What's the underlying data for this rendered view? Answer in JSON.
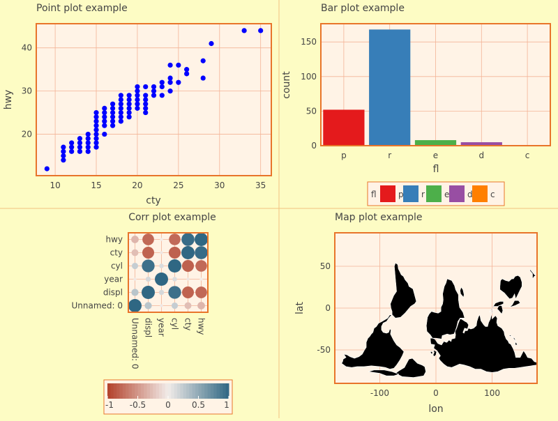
{
  "colors": {
    "background": "#fdfcc4",
    "panel": "#fff3e6",
    "frame": "#e8742a",
    "grid": "#f3b396",
    "divider": "#f1c27f",
    "text": "#444444",
    "point": "#0000ff",
    "map_land": "#000000"
  },
  "chart_data": [
    {
      "id": "point",
      "type": "scatter",
      "title": "Point plot example",
      "xlabel": "cty",
      "ylabel": "hwy",
      "xlim": [
        7.7,
        36.3
      ],
      "ylim": [
        10.4,
        45.6
      ],
      "xticks": [
        10,
        15,
        20,
        25,
        30,
        35
      ],
      "xtick_labels": [
        "10",
        "15",
        "20",
        "25",
        "30",
        "35"
      ],
      "yticks": [
        20,
        30,
        40
      ],
      "ytick_labels": [
        "20",
        "30",
        "40"
      ],
      "grid": true,
      "series": [
        {
          "color": "#0000ff",
          "points": [
            [
              9,
              12
            ],
            [
              11,
              14
            ],
            [
              11,
              15
            ],
            [
              11,
              16
            ],
            [
              11,
              17
            ],
            [
              12,
              16
            ],
            [
              12,
              17
            ],
            [
              12,
              18
            ],
            [
              13,
              16
            ],
            [
              13,
              17
            ],
            [
              13,
              18
            ],
            [
              13,
              19
            ],
            [
              14,
              16
            ],
            [
              14,
              17
            ],
            [
              14,
              18
            ],
            [
              14,
              19
            ],
            [
              14,
              20
            ],
            [
              15,
              17
            ],
            [
              15,
              18
            ],
            [
              15,
              19
            ],
            [
              15,
              20
            ],
            [
              15,
              21
            ],
            [
              15,
              22
            ],
            [
              15,
              23
            ],
            [
              15,
              24
            ],
            [
              15,
              25
            ],
            [
              16,
              20
            ],
            [
              16,
              22
            ],
            [
              16,
              23
            ],
            [
              16,
              24
            ],
            [
              16,
              25
            ],
            [
              16,
              26
            ],
            [
              17,
              22
            ],
            [
              17,
              23
            ],
            [
              17,
              24
            ],
            [
              17,
              25
            ],
            [
              17,
              26
            ],
            [
              17,
              27
            ],
            [
              18,
              23
            ],
            [
              18,
              24
            ],
            [
              18,
              25
            ],
            [
              18,
              26
            ],
            [
              18,
              27
            ],
            [
              18,
              28
            ],
            [
              18,
              29
            ],
            [
              19,
              24
            ],
            [
              19,
              25
            ],
            [
              19,
              26
            ],
            [
              19,
              27
            ],
            [
              19,
              28
            ],
            [
              19,
              29
            ],
            [
              20,
              26
            ],
            [
              20,
              27
            ],
            [
              20,
              28
            ],
            [
              20,
              29
            ],
            [
              20,
              30
            ],
            [
              20,
              31
            ],
            [
              21,
              25
            ],
            [
              21,
              26
            ],
            [
              21,
              27
            ],
            [
              21,
              28
            ],
            [
              21,
              29
            ],
            [
              21,
              31
            ],
            [
              22,
              29
            ],
            [
              22,
              30
            ],
            [
              22,
              31
            ],
            [
              23,
              29
            ],
            [
              23,
              31
            ],
            [
              23,
              32
            ],
            [
              24,
              30
            ],
            [
              24,
              32
            ],
            [
              24,
              33
            ],
            [
              24,
              36
            ],
            [
              25,
              32
            ],
            [
              25,
              36
            ],
            [
              26,
              34
            ],
            [
              26,
              35
            ],
            [
              28,
              33
            ],
            [
              28,
              37
            ],
            [
              29,
              41
            ],
            [
              33,
              44
            ],
            [
              35,
              44
            ]
          ]
        }
      ]
    },
    {
      "id": "bar",
      "type": "bar",
      "title": "Bar plot example",
      "xlabel": "fl",
      "ylabel": "count",
      "categories": [
        "p",
        "r",
        "e",
        "d",
        "c"
      ],
      "values": [
        52,
        168,
        8,
        5,
        1
      ],
      "bar_colors": [
        "#e41a1c",
        "#377eb8",
        "#4daf4a",
        "#984ea3",
        "#ff7f00"
      ],
      "ylim": [
        0,
        176.4
      ],
      "yticks": [
        0,
        50,
        100,
        150
      ],
      "ytick_labels": [
        "0",
        "50",
        "100",
        "150"
      ],
      "grid": true,
      "legend": {
        "title": "fl",
        "placement": "bottom",
        "entries": [
          "p",
          "r",
          "e",
          "d",
          "c"
        ]
      }
    },
    {
      "id": "corr",
      "type": "heatmap",
      "title": "Corr plot example",
      "variables": [
        "Unnamed: 0",
        "displ",
        "year",
        "cyl",
        "cty",
        "hwy"
      ],
      "matrix": [
        [
          1.0,
          0.29,
          -0.03,
          0.23,
          -0.27,
          -0.32
        ],
        [
          0.29,
          1.0,
          0.15,
          0.93,
          -0.8,
          -0.77
        ],
        [
          -0.03,
          0.15,
          1.0,
          0.12,
          -0.04,
          0.0
        ],
        [
          0.23,
          0.93,
          0.12,
          1.0,
          -0.81,
          -0.76
        ],
        [
          -0.27,
          -0.8,
          -0.04,
          -0.81,
          1.0,
          0.96
        ],
        [
          -0.32,
          -0.77,
          0.0,
          -0.76,
          0.96,
          1.0
        ]
      ],
      "colorbar": {
        "range": [
          -1,
          1
        ],
        "ticks": [
          -1,
          -0.5,
          0,
          0.5,
          1
        ],
        "tick_labels": [
          "-1",
          "-0.5",
          "0",
          "0.5",
          "1"
        ],
        "negative_color": "#b2412a",
        "positive_color": "#2f6783"
      }
    },
    {
      "id": "map",
      "type": "map",
      "title": "Map plot example",
      "xlabel": "lon",
      "ylabel": "lat",
      "xlim": [
        -180,
        180
      ],
      "ylim": [
        -90,
        90
      ],
      "xticks": [
        -100,
        0,
        100
      ],
      "xtick_labels": [
        "-100",
        "0",
        "100"
      ],
      "yticks": [
        -50,
        0,
        50
      ],
      "ytick_labels": [
        "-50",
        "0",
        "50"
      ],
      "grid": true
    }
  ]
}
